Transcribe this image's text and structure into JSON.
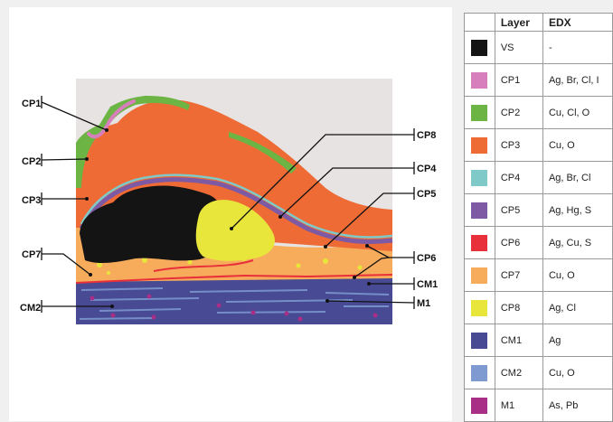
{
  "callouts": [
    "CP1",
    "CP2",
    "CP3",
    "CP7",
    "CM2",
    "CP8",
    "CP4",
    "CP5",
    "CP6",
    "CM1",
    "M1"
  ],
  "legend": {
    "headers": [
      "",
      "Layer",
      "EDX"
    ],
    "rows": [
      {
        "layer": "VS",
        "edx": "-",
        "color": "#141414"
      },
      {
        "layer": "CP1",
        "edx": "Ag, Br, Cl, I",
        "color": "#d77fbd"
      },
      {
        "layer": "CP2",
        "edx": "Cu, Cl, O",
        "color": "#6cb545"
      },
      {
        "layer": "CP3",
        "edx": "Cu, O",
        "color": "#ee6b35"
      },
      {
        "layer": "CP4",
        "edx": "Ag, Br, Cl",
        "color": "#7fc9c8"
      },
      {
        "layer": "CP5",
        "edx": "Ag, Hg, S",
        "color": "#7d5aa3"
      },
      {
        "layer": "CP6",
        "edx": "Ag, Cu, S",
        "color": "#e8303a"
      },
      {
        "layer": "CP7",
        "edx": "Cu, O",
        "color": "#f7ac5b"
      },
      {
        "layer": "CP8",
        "edx": "Ag, Cl",
        "color": "#e9e63b"
      },
      {
        "layer": "CM1",
        "edx": "Ag",
        "color": "#484a94"
      },
      {
        "layer": "CM2",
        "edx": "Cu, O",
        "color": "#7e9ad1"
      },
      {
        "layer": "M1",
        "edx": "As, Pb",
        "color": "#a82e86"
      }
    ]
  }
}
